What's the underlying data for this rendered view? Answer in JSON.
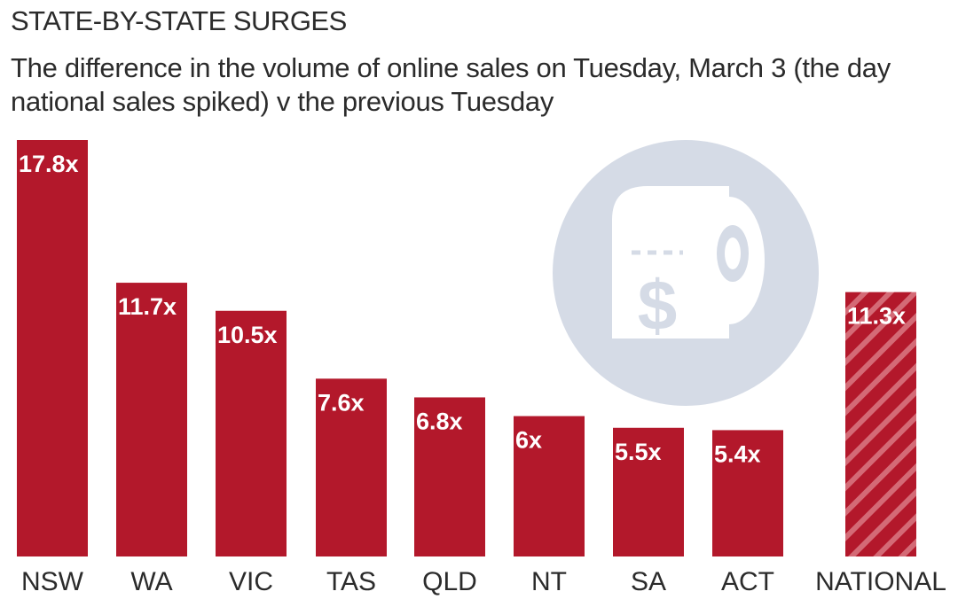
{
  "colors": {
    "bar": "#b3182b",
    "national_stripe": "#d46a76",
    "label_text": "#ffffff",
    "axis_text": "#2b2b2b",
    "icon_circle": "#d5dbe6",
    "icon_fg": "#ffffff"
  },
  "icon": "toilet-paper-roll-dollar-icon",
  "chart_data": {
    "type": "bar",
    "title": "STATE-BY-STATE SURGES",
    "subtitle": "The difference in the volume of online sales on Tuesday, March 3 (the day national sales spiked) v the previous Tuesday",
    "categories": [
      "NSW",
      "WA",
      "VIC",
      "TAS",
      "QLD",
      "NT",
      "SA",
      "ACT",
      "NATIONAL"
    ],
    "values": [
      17.8,
      11.7,
      10.5,
      7.6,
      6.8,
      6,
      5.5,
      5.4,
      11.3
    ],
    "data_labels": [
      "17.8x",
      "11.7x",
      "10.5x",
      "7.6x",
      "6.8x",
      "6x",
      "5.5x",
      "5.4x",
      "11.3x"
    ],
    "highlight": "NATIONAL",
    "highlight_style": "hatched",
    "xlabel": "",
    "ylabel": "",
    "ylim": [
      0,
      17.8
    ],
    "grid": false,
    "legend": "none"
  }
}
